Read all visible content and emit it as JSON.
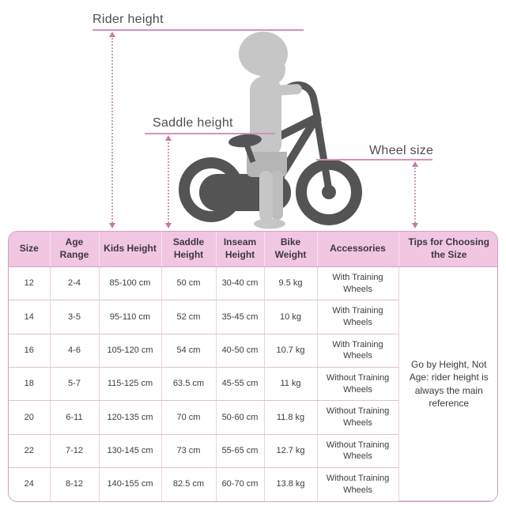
{
  "diagram": {
    "rider_height_label": "Rider height",
    "saddle_height_label": "Saddle height",
    "wheel_size_label": "Wheel size"
  },
  "table": {
    "headers": [
      "Size",
      "Age Range",
      "Kids Height",
      "Saddle Height",
      "Inseam Height",
      "Bike Weight",
      "Accessories",
      "Tips for Choosing the Size"
    ],
    "rows": [
      {
        "size": "12",
        "age": "2-4",
        "kids_height": "85-100 cm",
        "saddle_height": "50 cm",
        "inseam_height": "30-40 cm",
        "bike_weight": "9.5 kg",
        "accessories": "With Training Wheels"
      },
      {
        "size": "14",
        "age": "3-5",
        "kids_height": "95-110 cm",
        "saddle_height": "52 cm",
        "inseam_height": "35-45 cm",
        "bike_weight": "10 kg",
        "accessories": "With Training Wheels"
      },
      {
        "size": "16",
        "age": "4-6",
        "kids_height": "105-120 cm",
        "saddle_height": "54 cm",
        "inseam_height": "40-50 cm",
        "bike_weight": "10.7 kg",
        "accessories": "With Training Wheels"
      },
      {
        "size": "18",
        "age": "5-7",
        "kids_height": "115-125 cm",
        "saddle_height": "63.5 cm",
        "inseam_height": "45-55 cm",
        "bike_weight": "11 kg",
        "accessories": "Without Training Wheels"
      },
      {
        "size": "20",
        "age": "6-11",
        "kids_height": "120-135 cm",
        "saddle_height": "70 cm",
        "inseam_height": "50-60 cm",
        "bike_weight": "11.8 kg",
        "accessories": "Without Training Wheels"
      },
      {
        "size": "22",
        "age": "7-12",
        "kids_height": "130-145 cm",
        "saddle_height": "73 cm",
        "inseam_height": "55-65 cm",
        "bike_weight": "12.7 kg",
        "accessories": "Without Training Wheels"
      },
      {
        "size": "24",
        "age": "8-12",
        "kids_height": "140-155 cm",
        "saddle_height": "82.5 cm",
        "inseam_height": "60-70 cm",
        "bike_weight": "13.8 kg",
        "accessories": "Without Training Wheels"
      }
    ],
    "tips_text": "Go by Height, Not Age: rider height is always the main reference"
  },
  "colors": {
    "header_bg": "#f0c6e0",
    "table_border": "#cfa0c4",
    "dimension_line": "#d492bd",
    "arrow": "#c978a9",
    "bike_gray": "#545454",
    "child_gray": "#c6c6c6",
    "text_dark": "#3e3545"
  }
}
